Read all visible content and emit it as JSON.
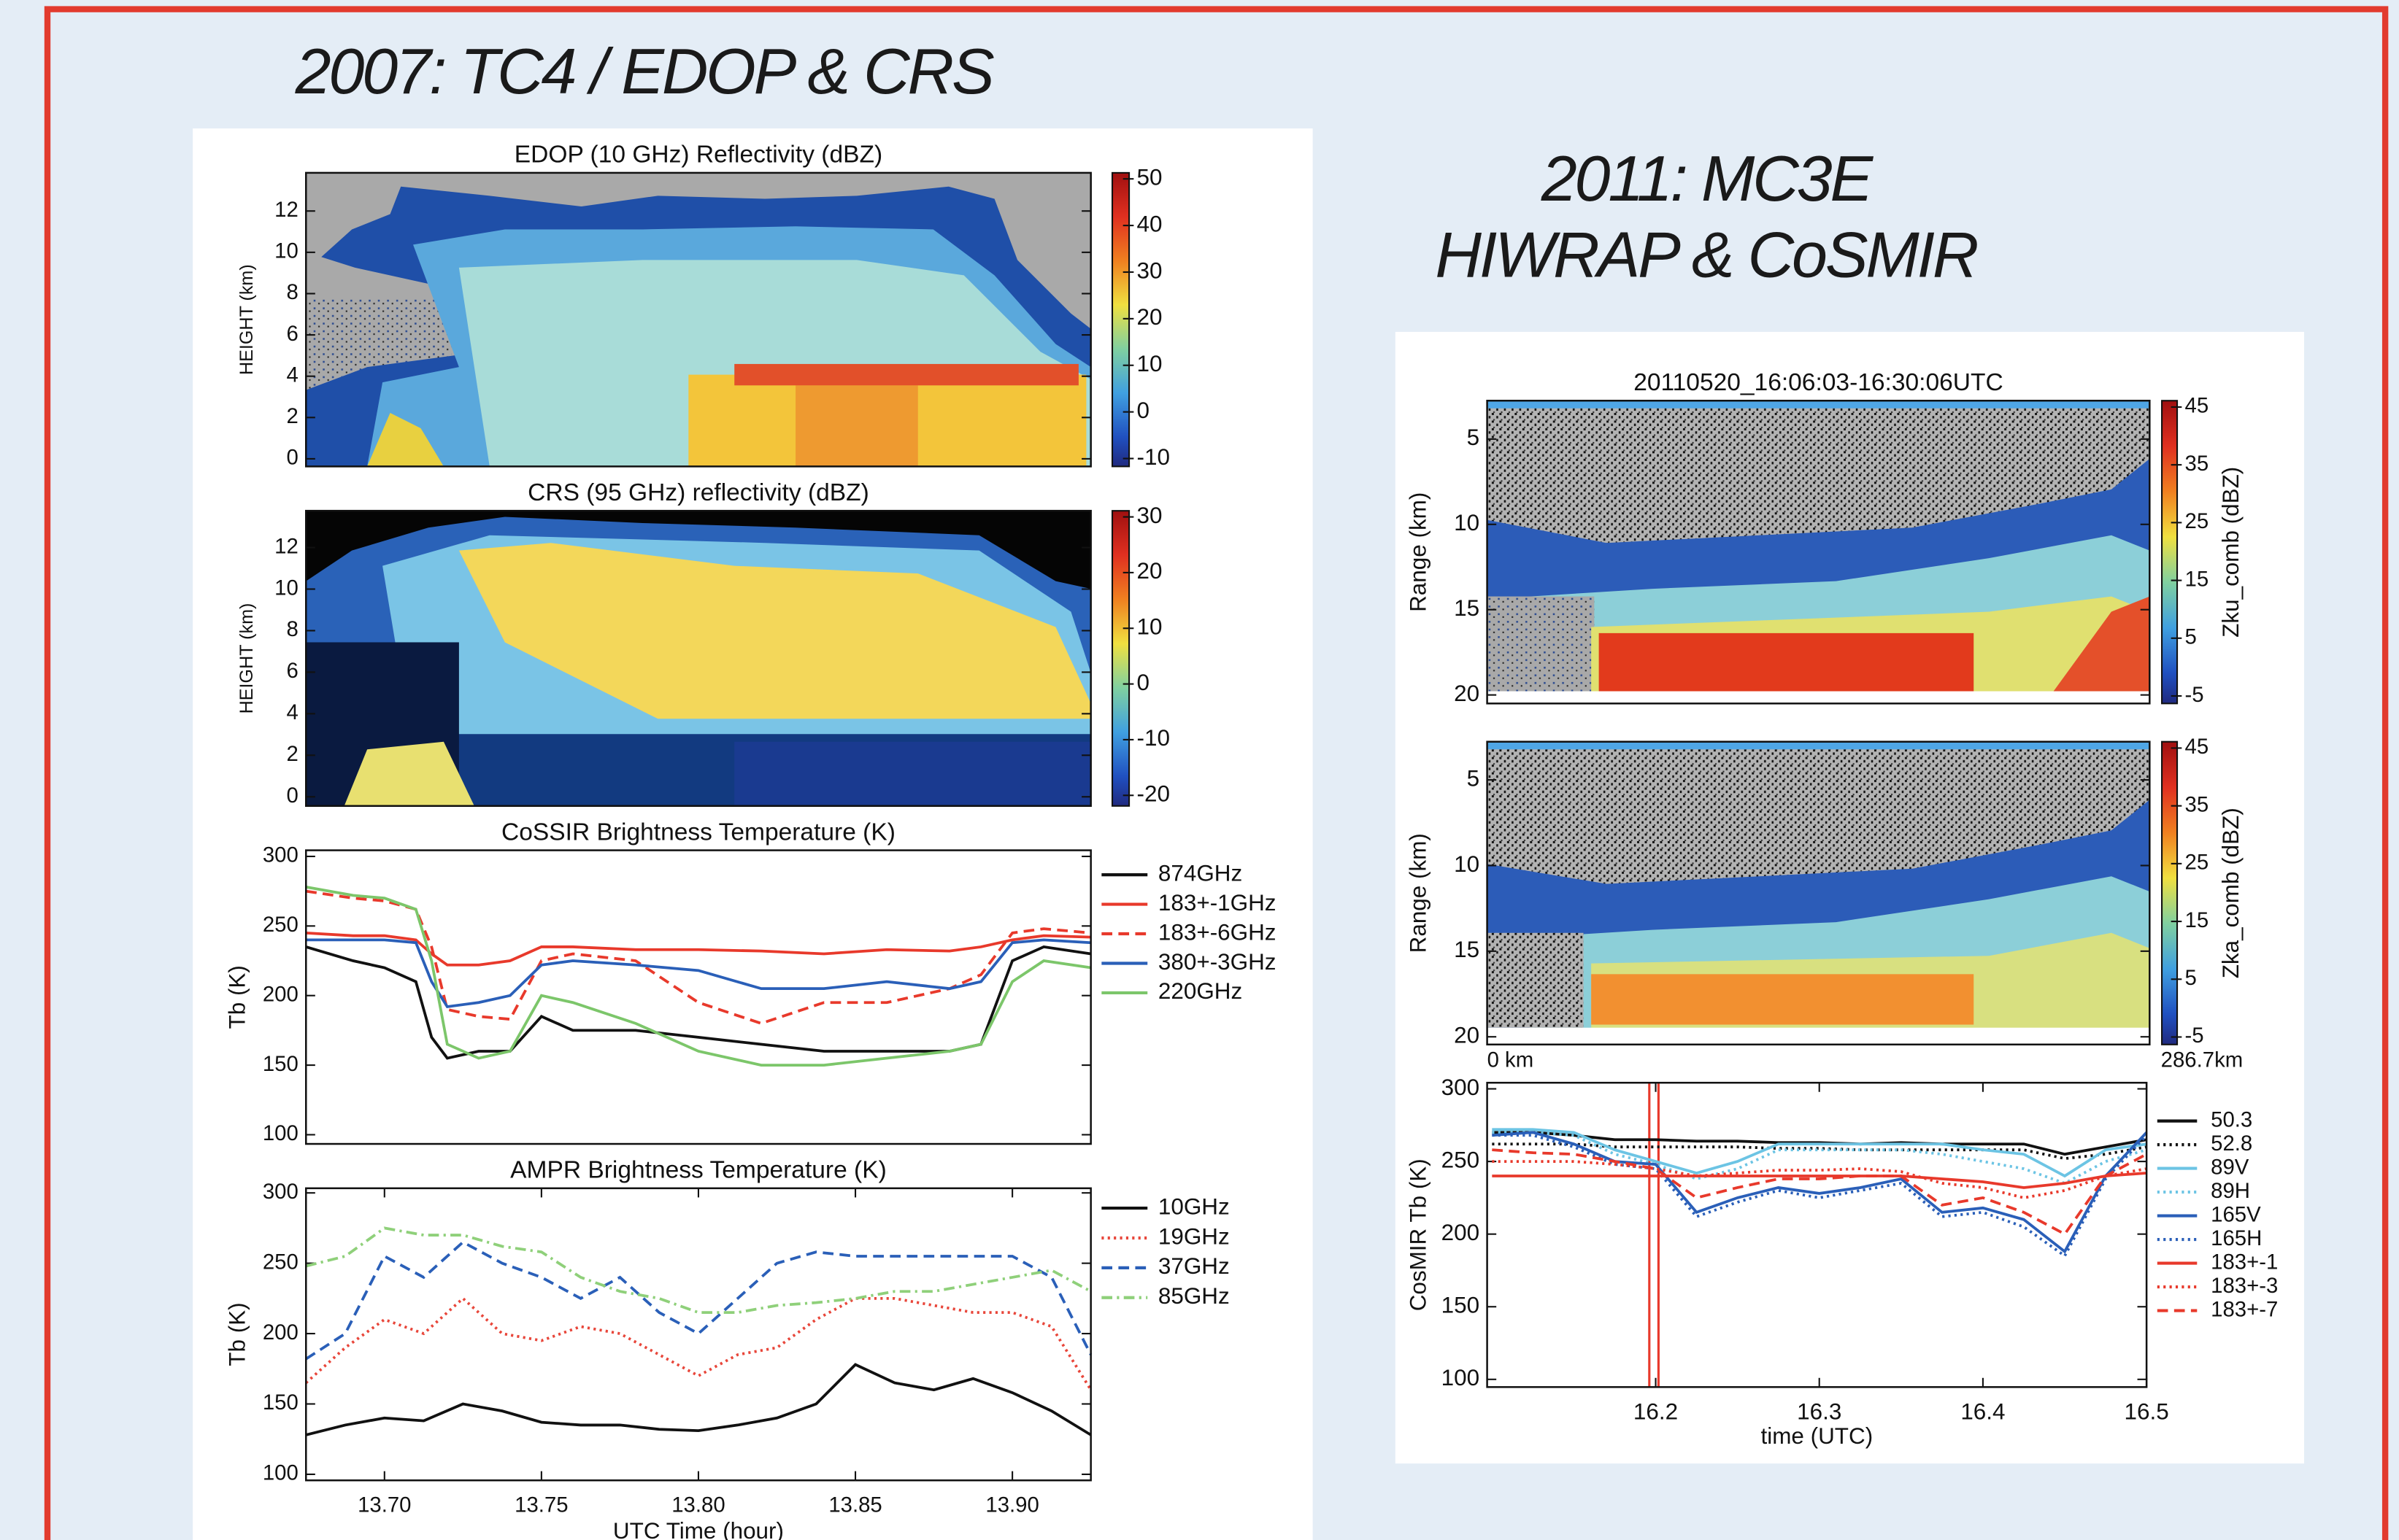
{
  "panels": [
    {
      "title": "2007: TC4 / EDOP & CRS"
    },
    {
      "title": [
        "2011: MC3E",
        "HIWRAP & CoSMIR"
      ]
    }
  ],
  "chart_data": [
    {
      "type": "heatmap",
      "title": "EDOP (10 GHz) Reflectivity (dBZ)",
      "ylabel": "HEIGHT (km)",
      "ylim": [
        -0.37,
        13.85
      ],
      "yticks": [
        0,
        2,
        4,
        6,
        8,
        10,
        12
      ],
      "colorbar": {
        "lim": [
          -11.7,
          51.3
        ],
        "ticks": [
          -10,
          0,
          10,
          20,
          30,
          40,
          50
        ]
      }
    },
    {
      "type": "heatmap",
      "title": "CRS (95 GHz) reflectivity (dBZ)",
      "ylabel": "HEIGHT (km)",
      "ylim": [
        -0.44,
        13.77
      ],
      "yticks": [
        0,
        2,
        4,
        6,
        8,
        10,
        12
      ],
      "colorbar": {
        "lim": [
          -21.9,
          31.1
        ],
        "ticks": [
          -20,
          -10,
          0,
          10,
          20,
          30
        ]
      }
    },
    {
      "type": "line",
      "title": "CoSSIR Brightness Temperature (K)",
      "ylabel": "Tb (K)",
      "xlim": [
        13.675,
        13.925
      ],
      "ylim": [
        93.4,
        304.4
      ],
      "yticks": [
        100,
        150,
        200,
        250,
        300
      ],
      "x": [
        13.675,
        13.69,
        13.7,
        13.71,
        13.715,
        13.72,
        13.73,
        13.74,
        13.75,
        13.76,
        13.78,
        13.8,
        13.82,
        13.84,
        13.86,
        13.88,
        13.89,
        13.9,
        13.91,
        13.925
      ],
      "series": [
        {
          "name": "874GHz",
          "color": "#111111",
          "style": "solid",
          "values": [
            235,
            225,
            220,
            210,
            170,
            155,
            160,
            160,
            185,
            175,
            175,
            170,
            165,
            160,
            160,
            160,
            165,
            225,
            235,
            230
          ]
        },
        {
          "name": "183+-1GHz",
          "color": "#e8392b",
          "style": "solid",
          "values": [
            245,
            243,
            243,
            240,
            230,
            222,
            222,
            225,
            235,
            235,
            233,
            233,
            232,
            230,
            233,
            232,
            235,
            240,
            243,
            242
          ]
        },
        {
          "name": "183+-6GHz",
          "color": "#e8392b",
          "style": "dashed",
          "values": [
            275,
            270,
            268,
            262,
            235,
            190,
            185,
            183,
            225,
            230,
            225,
            195,
            180,
            195,
            195,
            205,
            215,
            245,
            248,
            245
          ]
        },
        {
          "name": "380+-3GHz",
          "color": "#2a5fb8",
          "style": "solid",
          "values": [
            240,
            240,
            240,
            238,
            210,
            192,
            195,
            200,
            222,
            225,
            222,
            218,
            205,
            205,
            210,
            205,
            210,
            238,
            240,
            238
          ]
        },
        {
          "name": "220GHz",
          "color": "#7cc66a",
          "style": "solid",
          "values": [
            278,
            272,
            270,
            262,
            225,
            165,
            155,
            160,
            200,
            195,
            180,
            160,
            150,
            150,
            155,
            160,
            165,
            210,
            225,
            220
          ]
        }
      ]
    },
    {
      "type": "line",
      "title": "AMPR Brightness Temperature (K)",
      "ylabel": "Tb (K)",
      "xlabel": "UTC Time (hour)",
      "xlim": [
        13.675,
        13.925
      ],
      "ylim": [
        95.7,
        303.3
      ],
      "yticks": [
        100,
        150,
        200,
        250,
        300
      ],
      "xticks": [
        {
          "value": 13.7,
          "label": "13.70"
        },
        {
          "value": 13.75,
          "label": "13.75"
        },
        {
          "value": 13.8,
          "label": "13.80"
        },
        {
          "value": 13.85,
          "label": "13.85"
        },
        {
          "value": 13.9,
          "label": "13.90"
        }
      ],
      "x": [
        13.675,
        13.6875,
        13.7,
        13.7125,
        13.725,
        13.7375,
        13.75,
        13.7625,
        13.775,
        13.7875,
        13.8,
        13.8125,
        13.825,
        13.8375,
        13.85,
        13.8625,
        13.875,
        13.8875,
        13.9,
        13.9125,
        13.925
      ],
      "series": [
        {
          "name": "10GHz",
          "color": "#111111",
          "style": "solid",
          "values": [
            128,
            135,
            140,
            138,
            150,
            145,
            137,
            135,
            135,
            132,
            131,
            135,
            140,
            150,
            178,
            165,
            160,
            168,
            158,
            145,
            128
          ]
        },
        {
          "name": "19GHz",
          "color": "#e8463a",
          "style": "dotted",
          "values": [
            165,
            190,
            210,
            200,
            225,
            200,
            195,
            205,
            200,
            185,
            170,
            185,
            190,
            210,
            225,
            225,
            220,
            215,
            215,
            205,
            160
          ]
        },
        {
          "name": "37GHz",
          "color": "#2a5fb8",
          "style": "dashed",
          "values": [
            182,
            200,
            255,
            240,
            265,
            250,
            240,
            225,
            240,
            215,
            200,
            225,
            250,
            258,
            255,
            255,
            255,
            255,
            255,
            240,
            185
          ]
        },
        {
          "name": "85GHz",
          "color": "#8fd07a",
          "style": "dashdot",
          "values": [
            248,
            255,
            275,
            270,
            270,
            262,
            258,
            240,
            230,
            225,
            215,
            215,
            220,
            222,
            225,
            230,
            230,
            235,
            240,
            245,
            230
          ]
        }
      ]
    },
    {
      "type": "heatmap",
      "title": "20110520_16:06:03-16:30:06UTC",
      "ylabel": "Range (km)",
      "ylim": [
        20.5,
        2.75
      ],
      "yticks": [
        5,
        10,
        15,
        20
      ],
      "colorbar": {
        "lim": [
          -6.3,
          46.1
        ],
        "ticks": [
          -5,
          5,
          15,
          25,
          35,
          45
        ],
        "label": "Zku_comb (dBZ)"
      }
    },
    {
      "type": "heatmap",
      "ylabel": "Range (km)",
      "annotations": [
        "0 km",
        "286.7km"
      ],
      "ylim": [
        20.45,
        2.77
      ],
      "yticks": [
        5,
        10,
        15,
        20
      ],
      "colorbar": {
        "lim": [
          -6.3,
          46.1
        ],
        "ticks": [
          -5,
          5,
          15,
          25,
          35,
          45
        ],
        "label": "Zka_comb (dBZ)"
      }
    },
    {
      "type": "line",
      "ylabel": "CosMIR Tb (K)",
      "xlabel": "time (UTC)",
      "xlim": [
        16.097,
        16.5
      ],
      "ylim": [
        94.7,
        304.2
      ],
      "yticks": [
        100,
        150,
        200,
        250,
        300
      ],
      "xticks": [
        16.2,
        16.3,
        16.4,
        16.5
      ],
      "x": [
        16.1,
        16.125,
        16.15,
        16.175,
        16.2,
        16.225,
        16.25,
        16.275,
        16.3,
        16.325,
        16.35,
        16.375,
        16.4,
        16.425,
        16.45,
        16.475,
        16.5
      ],
      "series": [
        {
          "name": "50.3",
          "color": "#111111",
          "style": "solid",
          "values": [
            270,
            270,
            268,
            265,
            265,
            264,
            264,
            263,
            263,
            262,
            263,
            262,
            262,
            262,
            255,
            260,
            265
          ]
        },
        {
          "name": "52.8",
          "color": "#111111",
          "style": "dotted",
          "values": [
            262,
            262,
            262,
            260,
            260,
            260,
            260,
            259,
            259,
            258,
            258,
            258,
            258,
            258,
            252,
            255,
            260
          ]
        },
        {
          "name": "89V",
          "color": "#6cc4e4",
          "style": "solid",
          "values": [
            272,
            272,
            270,
            258,
            250,
            242,
            250,
            262,
            262,
            262,
            262,
            262,
            258,
            255,
            240,
            258,
            262
          ]
        },
        {
          "name": "89H",
          "color": "#6cc4e4",
          "style": "dotted",
          "values": [
            270,
            270,
            268,
            255,
            248,
            238,
            245,
            258,
            258,
            258,
            258,
            255,
            250,
            245,
            235,
            250,
            258
          ]
        },
        {
          "name": "165V",
          "color": "#2a5fb8",
          "style": "solid",
          "values": [
            268,
            270,
            262,
            250,
            248,
            215,
            225,
            232,
            228,
            232,
            238,
            215,
            218,
            210,
            188,
            240,
            270
          ]
        },
        {
          "name": "165H",
          "color": "#2a5fb8",
          "style": "dotted",
          "values": [
            268,
            268,
            260,
            248,
            245,
            212,
            222,
            230,
            225,
            230,
            235,
            212,
            215,
            205,
            185,
            238,
            268
          ]
        },
        {
          "name": "183+-1",
          "color": "#e8392b",
          "style": "solid",
          "values": [
            240,
            240,
            240,
            240,
            240,
            240,
            240,
            240,
            240,
            240,
            240,
            238,
            236,
            232,
            235,
            240,
            242
          ]
        },
        {
          "name": "183+-3",
          "color": "#e8392b",
          "style": "dotted",
          "values": [
            250,
            250,
            250,
            248,
            245,
            240,
            242,
            244,
            244,
            245,
            243,
            235,
            232,
            225,
            230,
            240,
            245
          ]
        },
        {
          "name": "183+-7",
          "color": "#e8392b",
          "style": "dashed",
          "values": [
            258,
            256,
            255,
            250,
            245,
            225,
            232,
            238,
            238,
            240,
            240,
            220,
            225,
            215,
            200,
            240,
            255
          ]
        }
      ]
    }
  ]
}
